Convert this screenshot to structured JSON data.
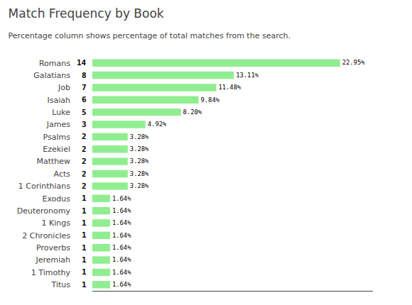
{
  "chart_data": {
    "type": "bar",
    "title": "Match Frequency by Book",
    "subtitle": "Percentage column shows percentage of total matches from the search.",
    "orientation": "horizontal",
    "categories": [
      "Romans",
      "Galatians",
      "Job",
      "Isaiah",
      "Luke",
      "James",
      "Psalms",
      "Ezekiel",
      "Matthew",
      "Acts",
      "1 Corinthians",
      "Exodus",
      "Deuteronomy",
      "1 Kings",
      "2 Chronicles",
      "Proverbs",
      "Jeremiah",
      "1 Timothy",
      "Titus"
    ],
    "values": [
      22.95,
      13.11,
      11.48,
      9.84,
      8.2,
      4.92,
      3.28,
      3.28,
      3.28,
      3.28,
      3.28,
      1.64,
      1.64,
      1.64,
      1.64,
      1.64,
      1.64,
      1.64,
      1.64
    ],
    "value_labels": [
      "22.95%",
      "13.11%",
      "11.48%",
      "9.84%",
      "8.20%",
      "4.92%",
      "3.28%",
      "3.28%",
      "3.28%",
      "3.28%",
      "3.28%",
      "1.64%",
      "1.64%",
      "1.64%",
      "1.64%",
      "1.64%",
      "1.64%",
      "1.64%",
      "1.64%"
    ],
    "counts": [
      14,
      8,
      7,
      6,
      5,
      3,
      2,
      2,
      2,
      2,
      2,
      1,
      1,
      1,
      1,
      1,
      1,
      1,
      1
    ],
    "color": "#90EE90",
    "xlim": [
      0,
      26
    ],
    "xticks": [],
    "data_labels": true,
    "tick_labels": "y",
    "grid": false
  }
}
